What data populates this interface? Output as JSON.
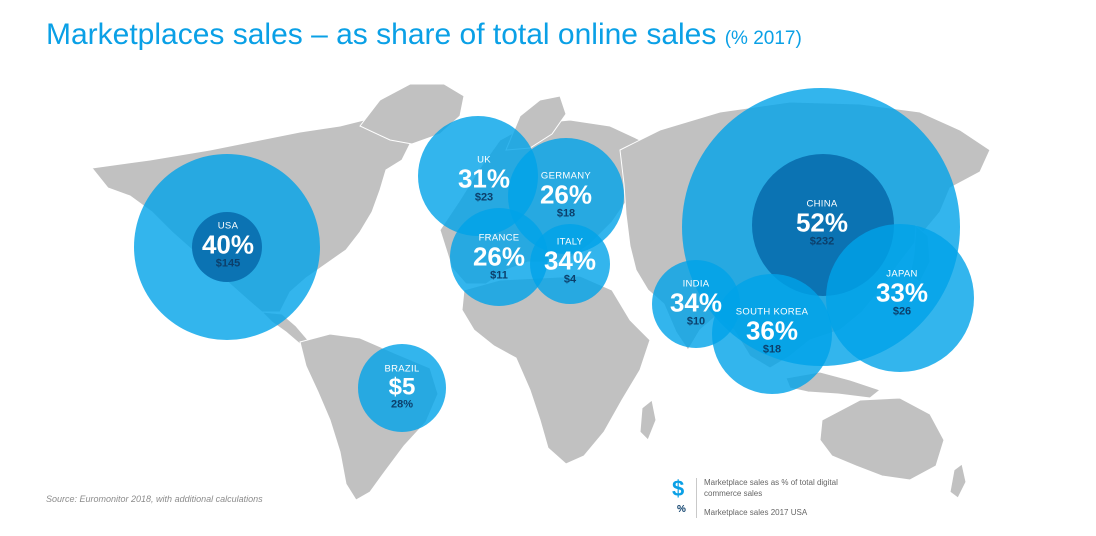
{
  "title": {
    "main": "Marketplaces sales – as share of total online sales",
    "sub": "(% 2017)"
  },
  "source": "Source: Euromonitor 2018, with additional calculations",
  "colors": {
    "bubble": "#00a2e8",
    "inner": "#0b73b3",
    "land": "#c1c1c1",
    "title": "#0aa0e6",
    "dollar": "#0c3f6b"
  },
  "countries": [
    {
      "name": "USA",
      "pct": "40%",
      "usd": "$145"
    },
    {
      "name": "UK",
      "pct": "31%",
      "usd": "$23"
    },
    {
      "name": "GERMANY",
      "pct": "26%",
      "usd": "$18"
    },
    {
      "name": "FRANCE",
      "pct": "26%",
      "usd": "$11"
    },
    {
      "name": "ITALY",
      "pct": "34%",
      "usd": "$4"
    },
    {
      "name": "BRAZIL",
      "usd": "$5",
      "pct": "28%"
    },
    {
      "name": "INDIA",
      "pct": "34%",
      "usd": "$10"
    },
    {
      "name": "SOUTH KOREA",
      "pct": "36%",
      "usd": "$18"
    },
    {
      "name": "CHINA",
      "pct": "52%",
      "usd": "$232"
    },
    {
      "name": "JAPAN",
      "pct": "33%",
      "usd": "$26"
    }
  ],
  "legend": {
    "dollar_symbol": "$",
    "pct_symbol": "%",
    "dollar_text": "Marketplace sales as % of total digital commerce sales",
    "pct_text": "Marketplace sales 2017 USA"
  }
}
